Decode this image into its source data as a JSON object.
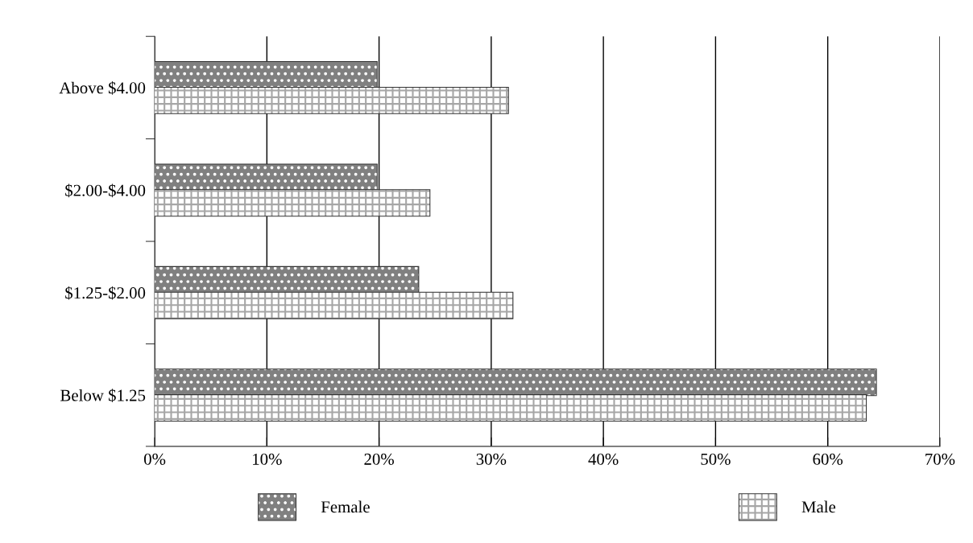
{
  "chart_data": {
    "type": "bar",
    "orientation": "horizontal",
    "categories": [
      "Above $4.00",
      "$2.00-$4.00",
      "$1.25-$2.00",
      "Below $1.25"
    ],
    "series": [
      {
        "name": "Female",
        "color": "#808080",
        "values": [
          19.8,
          19.8,
          23.5,
          64.3
        ]
      },
      {
        "name": "Male",
        "color": "#ffffff",
        "values": [
          31.5,
          24.5,
          31.9,
          63.4
        ]
      }
    ],
    "xlim": [
      0,
      70
    ],
    "xticks": [
      {
        "value": 0,
        "label": "0%"
      },
      {
        "value": 10,
        "label": "10%"
      },
      {
        "value": 20,
        "label": "20%"
      },
      {
        "value": 30,
        "label": "30%"
      },
      {
        "value": 40,
        "label": "40%"
      },
      {
        "value": 50,
        "label": "50%"
      },
      {
        "value": 60,
        "label": "60%"
      },
      {
        "value": 70,
        "label": "70%"
      }
    ],
    "grid": "x",
    "legend": "bottom"
  }
}
